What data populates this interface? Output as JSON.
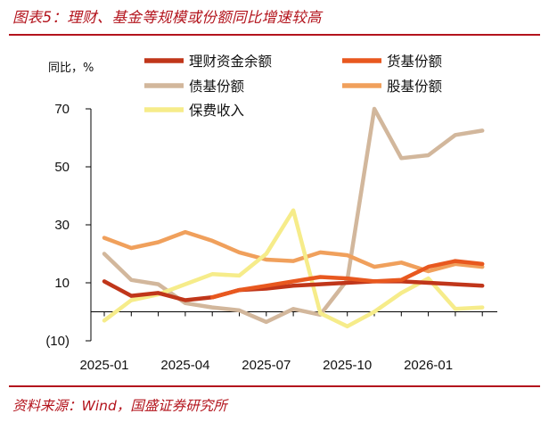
{
  "figure": {
    "title": "图表5：理财、基金等规模或份额同比增速较高",
    "source": "资料来源：Wind，国盛证券研究所"
  },
  "chart_data": {
    "type": "line",
    "ylabel": "同比，%",
    "ylim": [
      -10,
      70
    ],
    "yticks": [
      -10,
      10,
      30,
      50,
      70
    ],
    "ytick_labels": [
      "(10)",
      "10",
      "30",
      "50",
      "70"
    ],
    "x": [
      "2025-01",
      "2025-02",
      "2025-03",
      "2025-04",
      "2025-05",
      "2025-06",
      "2025-07",
      "2025-08",
      "2025-09",
      "2025-10",
      "2025-11",
      "2025-12",
      "2026-01",
      "2026-02",
      "2026-03"
    ],
    "xtick_labels": [
      "2025-01",
      "2025-04",
      "2025-07",
      "2025-10",
      "2026-01"
    ],
    "legend_position": "top",
    "grid": false,
    "series": [
      {
        "name": "理财资金余额",
        "color": "#c0361a",
        "values": [
          10.5,
          5.5,
          6.5,
          4.0,
          5.0,
          7.5,
          8.0,
          9.0,
          9.5,
          10.0,
          10.5,
          10.5,
          10.0,
          9.5,
          9.0
        ]
      },
      {
        "name": "货基份额",
        "color": "#e8581f",
        "values": [
          null,
          null,
          null,
          null,
          5.0,
          7.5,
          9.0,
          10.5,
          12.0,
          11.5,
          10.5,
          11.0,
          15.5,
          17.5,
          16.5
        ]
      },
      {
        "name": "债基份额",
        "color": "#d2b79c",
        "values": [
          20.0,
          11.0,
          9.5,
          3.0,
          1.5,
          0.5,
          -3.5,
          1.0,
          -1.0,
          11.0,
          70.0,
          53.0,
          54.0,
          61.0,
          62.5
        ]
      },
      {
        "name": "股基份额",
        "color": "#f0a05c",
        "values": [
          25.5,
          22.0,
          24.0,
          27.5,
          24.5,
          20.5,
          18.0,
          17.5,
          20.5,
          19.5,
          15.5,
          17.0,
          14.0,
          16.5,
          15.5
        ]
      },
      {
        "name": "保费收入",
        "color": "#f6ec8a",
        "values": [
          -3.0,
          4.0,
          6.0,
          9.5,
          13.0,
          12.5,
          20.0,
          35.0,
          -0.5,
          -5.0,
          0.0,
          6.5,
          11.5,
          1.0,
          1.5
        ]
      }
    ]
  }
}
